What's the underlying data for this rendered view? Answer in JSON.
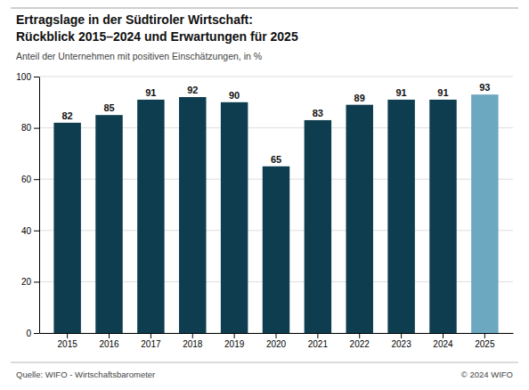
{
  "chart_data": {
    "type": "bar",
    "title": [
      "Ertragslage in der Südtiroler Wirtschaft:",
      "Rückblick 2015–2024 und Erwartungen für 2025"
    ],
    "subtitle": "Anteil der Unternehmen mit positiven Einschätzungen, in %",
    "categories": [
      "2015",
      "2016",
      "2017",
      "2018",
      "2019",
      "2020",
      "2021",
      "2022",
      "2023",
      "2024",
      "2025"
    ],
    "values": [
      82,
      85,
      91,
      92,
      90,
      65,
      83,
      89,
      91,
      91,
      93
    ],
    "colors": [
      "#0d3d4f",
      "#0d3d4f",
      "#0d3d4f",
      "#0d3d4f",
      "#0d3d4f",
      "#0d3d4f",
      "#0d3d4f",
      "#0d3d4f",
      "#0d3d4f",
      "#0d3d4f",
      "#6ca8c0"
    ],
    "ylim": [
      0,
      100
    ],
    "yticks": [
      0,
      20,
      40,
      60,
      80,
      100
    ],
    "grid": true,
    "data_labels": true,
    "annotations": [
      "Quelle: WIFO - Wirtschaftsbarometer",
      "© 2024 WIFO"
    ]
  }
}
